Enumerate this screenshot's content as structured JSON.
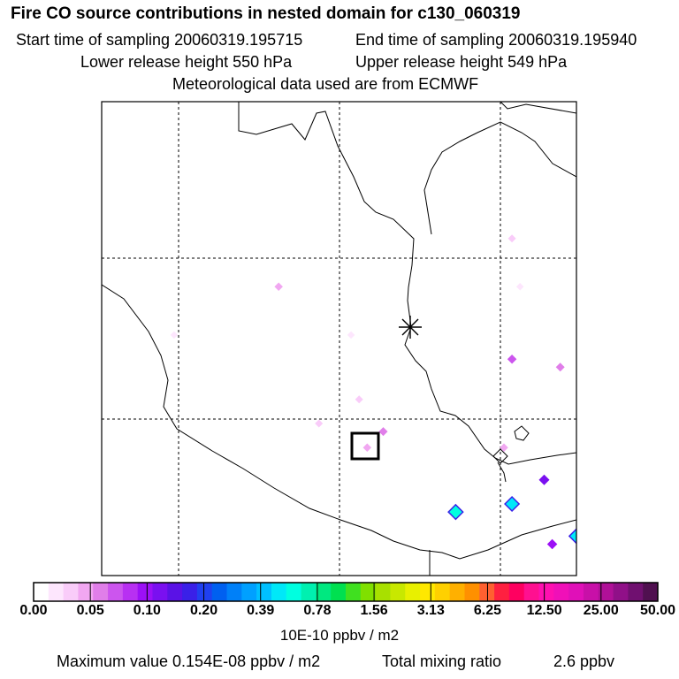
{
  "header": {
    "title": "Fire CO source contributions in nested domain for c130_060319",
    "start_label": "Start time of sampling 20060319.195715",
    "end_label": "End time of sampling 20060319.195940",
    "lower_label": "Lower release height  550 hPa",
    "upper_label": "Upper release height  549 hPa",
    "met_label": "Meteorological data used are from ECMWF"
  },
  "chart_data": {
    "type": "heatmap",
    "title": "Fire CO source contributions in nested domain for c130_060319",
    "colorbar": {
      "ticks": [
        "0.00",
        "0.05",
        "0.10",
        "0.20",
        "0.39",
        "0.78",
        "1.56",
        "3.13",
        "6.25",
        "12.50",
        "25.00",
        "50.00"
      ],
      "unit": "10E-10 ppbv / m2",
      "colors": [
        "#ffffff",
        "#fde6fd",
        "#f9ccf9",
        "#f1a7f1",
        "#e07ee9",
        "#cc55ee",
        "#b830f2",
        "#9c10f6",
        "#7a10f0",
        "#5a12e6",
        "#3a20e8",
        "#2040f0",
        "#0060f0",
        "#0080f8",
        "#00a0ff",
        "#00c0ff",
        "#00e8f8",
        "#00ffe0",
        "#00f0b0",
        "#00e880",
        "#00e050",
        "#40e020",
        "#80e000",
        "#a8e000",
        "#c8e800",
        "#e8f000",
        "#ffe800",
        "#ffd000",
        "#ffb000",
        "#ff9000",
        "#ff6030",
        "#ff2040",
        "#ff0060",
        "#ff1090",
        "#ff10b0",
        "#f010b8",
        "#e010b8",
        "#c810a8",
        "#b01098",
        "#901088",
        "#701070",
        "#501050"
      ]
    },
    "max_value": "0.154E-08",
    "total_mixing_ratio": "2.6",
    "sources": [
      {
        "lon": -98.0,
        "lat": 17.9,
        "level": 4
      },
      {
        "lon": -98.2,
        "lat": 17.7,
        "level": 3
      },
      {
        "lon": -98.3,
        "lat": 18.3,
        "level": 2
      },
      {
        "lon": -97.1,
        "lat": 16.9,
        "level": 17
      },
      {
        "lon": -96.4,
        "lat": 17.0,
        "level": 16
      },
      {
        "lon": -96.0,
        "lat": 17.3,
        "level": 8
      },
      {
        "lon": -96.5,
        "lat": 17.7,
        "level": 3
      },
      {
        "lon": -95.8,
        "lat": 18.7,
        "level": 4
      },
      {
        "lon": -95.6,
        "lat": 16.6,
        "level": 16
      },
      {
        "lon": -95.4,
        "lat": 16.4,
        "level": 2
      },
      {
        "lon": -95.9,
        "lat": 16.5,
        "level": 7
      },
      {
        "lon": -95.9,
        "lat": 15.6,
        "level": 18
      },
      {
        "lon": -96.1,
        "lat": 15.6,
        "level": 6
      },
      {
        "lon": -95.6,
        "lat": 15.8,
        "level": 3
      },
      {
        "lon": -95.1,
        "lat": 16.8,
        "level": 2
      },
      {
        "lon": -95.4,
        "lat": 15.7,
        "level": 1
      },
      {
        "lon": -94.9,
        "lat": 15.8,
        "level": 34
      },
      {
        "lon": -94.3,
        "lat": 15.9,
        "level": 16
      },
      {
        "lon": -92.9,
        "lat": 16.3,
        "level": 8
      },
      {
        "lon": -92.6,
        "lat": 15.5,
        "level": 16
      },
      {
        "lon": -98.8,
        "lat": 18.0,
        "level": 2
      },
      {
        "lon": -99.3,
        "lat": 19.7,
        "level": 3
      },
      {
        "lon": -98.4,
        "lat": 19.1,
        "level": 1
      },
      {
        "lon": -96.4,
        "lat": 20.3,
        "level": 2
      },
      {
        "lon": -96.4,
        "lat": 18.8,
        "level": 5
      },
      {
        "lon": -96.3,
        "lat": 19.7,
        "level": 1
      },
      {
        "lon": -100.6,
        "lat": 19.1,
        "level": 1
      }
    ]
  },
  "footer": {
    "max_label": "Maximum value  0.154E-08 ppbv / m2",
    "total_label": "Total mixing ratio",
    "total_value": "2.6 ppbv"
  }
}
